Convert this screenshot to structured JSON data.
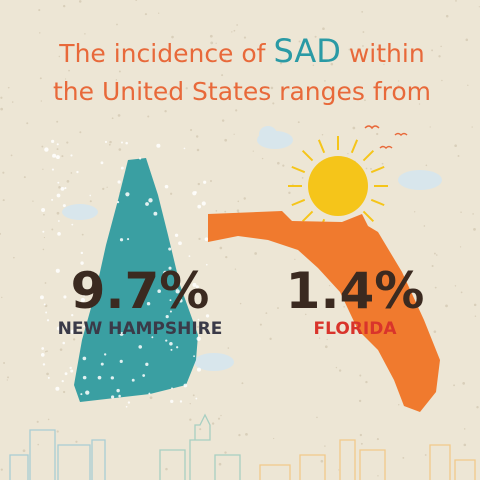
{
  "title": {
    "line1_before": "The incidence of",
    "highlight": "SAD",
    "line1_after": "within",
    "line2": "the United States ranges from"
  },
  "stats": [
    {
      "value": "9.7%",
      "label": "NEW HAMPSHIRE"
    },
    {
      "value": "1.4%",
      "label": "FLORIDA"
    }
  ]
}
